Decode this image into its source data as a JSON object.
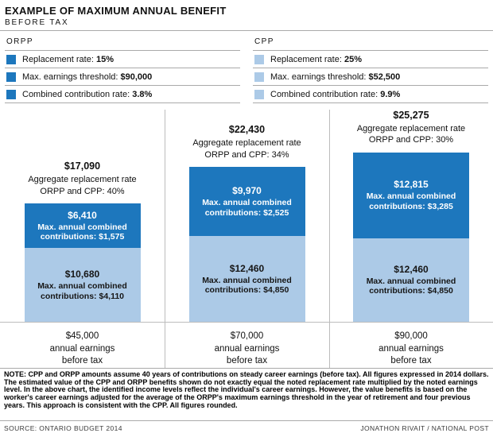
{
  "header": {
    "title": "EXAMPLE OF MAXIMUM ANNUAL BENEFIT",
    "subtitle": "BEFORE TAX"
  },
  "legend": {
    "groups": [
      {
        "name": "ORPP",
        "color": "#1d77bd",
        "rows": [
          {
            "label": "Replacement rate:",
            "value": "15%"
          },
          {
            "label": "Max. earnings threshold:",
            "value": "$90,000"
          },
          {
            "label": "Combined contribution rate:",
            "value": "3.8%"
          }
        ]
      },
      {
        "name": "CPP",
        "color": "#accae7",
        "rows": [
          {
            "label": "Replacement rate:",
            "value": "25%"
          },
          {
            "label": "Max. earnings threshold:",
            "value": "$52,500"
          },
          {
            "label": "Combined contribution rate:",
            "value": "9.9%"
          }
        ]
      }
    ]
  },
  "chart_data": {
    "type": "bar",
    "stacked": true,
    "title": "Example of maximum annual benefit (before tax)",
    "categories": [
      "$45,000 annual earnings before tax",
      "$70,000 annual earnings before tax",
      "$90,000 annual earnings before tax"
    ],
    "series": [
      {
        "name": "ORPP",
        "color": "#1d77bd",
        "text_color": "#ffffff",
        "values": [
          6410,
          9970,
          12815
        ],
        "max_annual_combined_contributions": [
          1575,
          2525,
          3285
        ]
      },
      {
        "name": "CPP",
        "color": "#accae7",
        "text_color": "#161616",
        "values": [
          10680,
          12460,
          12460
        ],
        "max_annual_combined_contributions": [
          4110,
          4850,
          4850
        ]
      }
    ],
    "totals": [
      17090,
      22430,
      25275
    ],
    "aggregate_replacement_rates_pct": [
      40,
      34,
      30
    ],
    "legend_position": "top",
    "grid": false
  },
  "columns": [
    {
      "total": "$17,090",
      "aggregate_line1": "Aggregate replacement rate",
      "aggregate_line2": "ORPP and CPP: 40%",
      "orpp_amount": "$6,410",
      "orpp_note": "Max. annual combined contributions: $1,575",
      "cpp_amount": "$10,680",
      "cpp_note": "Max. annual combined contributions: $4,110",
      "earnings_line1": "$45,000",
      "earnings_line2": "annual earnings",
      "earnings_line3": "before tax"
    },
    {
      "total": "$22,430",
      "aggregate_line1": "Aggregate replacement rate",
      "aggregate_line2": "ORPP and CPP: 34%",
      "orpp_amount": "$9,970",
      "orpp_note": "Max. annual combined contributions: $2,525",
      "cpp_amount": "$12,460",
      "cpp_note": "Max. annual combined contributions: $4,850",
      "earnings_line1": "$70,000",
      "earnings_line2": "annual earnings",
      "earnings_line3": "before tax"
    },
    {
      "total": "$25,275",
      "aggregate_line1": "Aggregate replacement rate",
      "aggregate_line2": "ORPP and CPP: 30%",
      "orpp_amount": "$12,815",
      "orpp_note": "Max. annual combined contributions: $3,285",
      "cpp_amount": "$12,460",
      "cpp_note": "Max. annual combined contributions: $4,850",
      "earnings_line1": "$90,000",
      "earnings_line2": "annual earnings",
      "earnings_line3": "before tax"
    }
  ],
  "note": "NOTE: CPP and ORPP amounts assume 40 years of contributions on steady career earnings (before tax). All figures expressed in 2014 dollars. The estimated value of the CPP and ORPP benefits shown do not exactly equal the noted replacement rate multiplied by the noted earnings level. In the above chart, the identified income levels reflect the individual's career earnings. However, the value benefits is based on the worker's career earnings adjusted for the average of the ORPP's maximum earnings threshold in the year of retirement and four previous years. This approach is consistent with the CPP. All figures rounded.",
  "footer": {
    "source": "SOURCE: ONTARIO BUDGET 2014",
    "credit": "JONATHON RIVAIT / NATIONAL POST"
  }
}
